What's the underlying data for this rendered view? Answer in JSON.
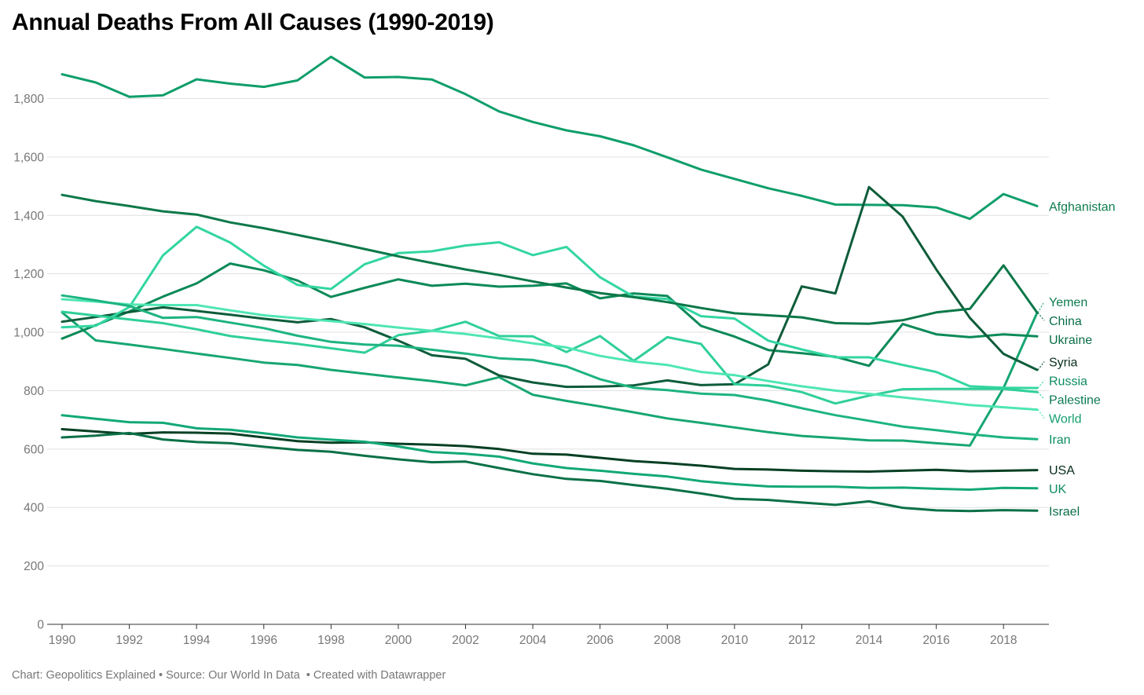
{
  "title": "Annual Deaths From All Causes (1990-2019)",
  "footer": {
    "chart_credit": "Chart: Geopolitics Explained",
    "source": "Source: Our World In Data",
    "created": "Created with Datawrapper"
  },
  "chart_data": {
    "type": "line",
    "title": "Annual Deaths From All Causes (1990-2019)",
    "xlabel": "",
    "ylabel": "",
    "xlim": [
      1990,
      2019
    ],
    "ylim": [
      0,
      1900
    ],
    "x_ticks": [
      1990,
      1992,
      1994,
      1996,
      1998,
      2000,
      2002,
      2004,
      2006,
      2008,
      2010,
      2012,
      2014,
      2016,
      2018
    ],
    "y_ticks": [
      0,
      200,
      400,
      600,
      800,
      1000,
      1200,
      1400,
      1600,
      1800
    ],
    "grid": true,
    "legend": "direct labels at right end of lines",
    "x": [
      1990,
      1991,
      1992,
      1993,
      1994,
      1995,
      1996,
      1997,
      1998,
      1999,
      2000,
      2001,
      2002,
      2003,
      2004,
      2005,
      2006,
      2007,
      2008,
      2009,
      2010,
      2011,
      2012,
      2013,
      2014,
      2015,
      2016,
      2017,
      2018,
      2019
    ],
    "series": [
      {
        "name": "Afghanistan",
        "color": "#0f9e6a",
        "label_color": "#0f7c50",
        "values": [
          1883,
          1855,
          1806,
          1811,
          1866,
          1851,
          1840,
          1862,
          1943,
          1872,
          1874,
          1865,
          1815,
          1756,
          1720,
          1691,
          1671,
          1640,
          1599,
          1557,
          1525,
          1493,
          1467,
          1437,
          1436,
          1435,
          1427,
          1388,
          1473,
          1432
        ]
      },
      {
        "name": "Yemen",
        "color": "#17a672",
        "label_color": "#0f7c50",
        "values": [
          1068,
          972,
          958,
          943,
          927,
          912,
          896,
          888,
          871,
          858,
          845,
          833,
          818,
          846,
          786,
          765,
          746,
          726,
          705,
          690,
          674,
          658,
          645,
          638,
          630,
          629,
          620,
          612,
          809,
          1067
        ]
      },
      {
        "name": "Ukraine",
        "color": "#0b8a58",
        "label_color": "#0b6f48",
        "values": [
          978,
          1024,
          1071,
          1122,
          1167,
          1235,
          1212,
          1177,
          1121,
          1152,
          1181,
          1159,
          1166,
          1156,
          1159,
          1167,
          1116,
          1133,
          1124,
          1022,
          985,
          939,
          928,
          916,
          885,
          1028,
          993,
          983,
          993,
          986
        ]
      },
      {
        "name": "Syria",
        "color": "#0e5c3a",
        "label_color": "#08301e",
        "values": [
          1036,
          1052,
          1069,
          1085,
          1073,
          1060,
          1046,
          1034,
          1045,
          1017,
          971,
          921,
          909,
          852,
          828,
          813,
          814,
          818,
          835,
          819,
          822,
          890,
          1157,
          1133,
          1497,
          1396,
          1215,
          1049,
          926,
          871
        ]
      },
      {
        "name": "Russia",
        "color": "#33d6a2",
        "label_color": "#0e8c5f",
        "values": [
          1017,
          1022,
          1086,
          1263,
          1361,
          1307,
          1228,
          1162,
          1148,
          1233,
          1271,
          1277,
          1297,
          1308,
          1264,
          1292,
          1188,
          1122,
          1114,
          1055,
          1047,
          971,
          941,
          914,
          914,
          888,
          864,
          815,
          810,
          809
        ]
      },
      {
        "name": "Palestine",
        "color": "#2fcf98",
        "label_color": "#0b7a52",
        "values": [
          1070,
          1057,
          1044,
          1031,
          1010,
          987,
          973,
          960,
          945,
          930,
          990,
          1005,
          1036,
          987,
          986,
          932,
          987,
          902,
          983,
          960,
          822,
          817,
          795,
          756,
          783,
          805,
          806,
          806,
          806,
          795
        ]
      },
      {
        "name": "World",
        "color": "#4fe6b3",
        "label_color": "#16a06f",
        "values": [
          1113,
          1105,
          1095,
          1093,
          1093,
          1075,
          1058,
          1048,
          1038,
          1028,
          1016,
          1005,
          994,
          979,
          962,
          948,
          919,
          900,
          888,
          864,
          853,
          833,
          815,
          800,
          789,
          777,
          764,
          751,
          743,
          735
        ]
      },
      {
        "name": "China",
        "color": "#0c7849",
        "label_color": "#0b6f48",
        "values": [
          1470,
          1449,
          1432,
          1414,
          1403,
          1376,
          1356,
          1333,
          1310,
          1285,
          1260,
          1237,
          1215,
          1196,
          1174,
          1153,
          1134,
          1120,
          1103,
          1083,
          1065,
          1058,
          1051,
          1031,
          1029,
          1041,
          1068,
          1080,
          1229,
          1067
        ]
      },
      {
        "name": "Iran",
        "color": "#1db47f",
        "label_color": "#0e8c5f",
        "values": [
          1126,
          1109,
          1090,
          1049,
          1052,
          1033,
          1014,
          988,
          967,
          958,
          954,
          940,
          927,
          911,
          905,
          883,
          839,
          810,
          802,
          790,
          785,
          766,
          740,
          716,
          697,
          677,
          665,
          651,
          640,
          634
        ]
      },
      {
        "name": "USA",
        "color": "#063f23",
        "label_color": "#052b18",
        "values": [
          668,
          660,
          652,
          657,
          656,
          653,
          640,
          627,
          622,
          623,
          618,
          615,
          610,
          600,
          584,
          581,
          570,
          559,
          552,
          543,
          532,
          530,
          526,
          524,
          523,
          526,
          529,
          524,
          526,
          528
        ]
      },
      {
        "name": "UK",
        "color": "#12a877",
        "label_color": "#0e8c5f",
        "values": [
          716,
          704,
          692,
          690,
          671,
          666,
          654,
          640,
          632,
          625,
          609,
          590,
          584,
          574,
          551,
          535,
          526,
          515,
          506,
          490,
          480,
          472,
          471,
          471,
          467,
          468,
          464,
          461,
          467,
          466
        ]
      },
      {
        "name": "Israel",
        "color": "#0a7046",
        "label_color": "#0b6f48",
        "values": [
          640,
          646,
          655,
          633,
          624,
          620,
          608,
          597,
          591,
          577,
          565,
          555,
          557,
          535,
          514,
          498,
          491,
          477,
          464,
          448,
          430,
          426,
          417,
          409,
          421,
          399,
          390,
          388,
          391,
          389
        ]
      }
    ]
  }
}
